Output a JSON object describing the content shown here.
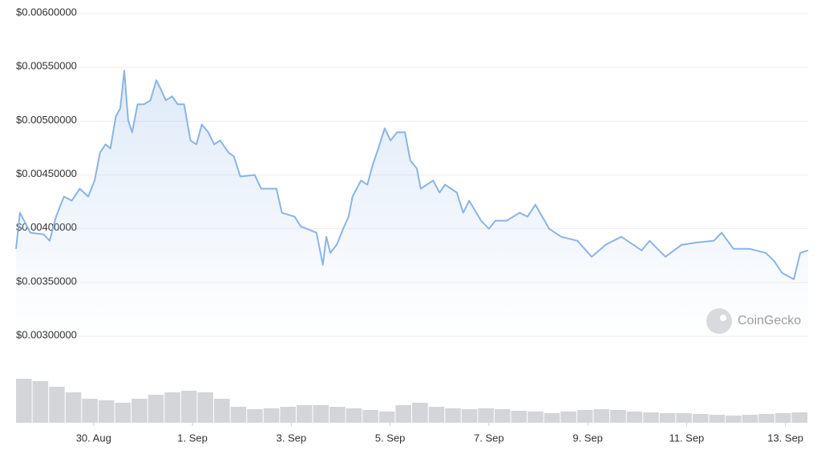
{
  "chart_data": {
    "type": "line",
    "watermark": "CoinGecko",
    "x": [
      -1.57,
      -1.49,
      -1.28,
      -1.01,
      -0.89,
      -0.76,
      -0.6,
      -0.44,
      -0.28,
      -0.11,
      0.02,
      0.13,
      0.24,
      0.34,
      0.45,
      0.54,
      0.62,
      0.7,
      0.78,
      0.89,
      1.02,
      1.15,
      1.27,
      1.35,
      1.46,
      1.59,
      1.7,
      1.83,
      1.96,
      2.08,
      2.19,
      2.32,
      2.44,
      2.56,
      2.73,
      2.84,
      2.97,
      3.26,
      3.39,
      3.7,
      3.81,
      4.07,
      4.19,
      4.51,
      4.64,
      4.71,
      4.79,
      4.92,
      5.05,
      5.16,
      5.24,
      5.41,
      5.54,
      5.65,
      5.76,
      5.89,
      6.01,
      6.14,
      6.3,
      6.41,
      6.54,
      6.62,
      6.87,
      7.0,
      7.11,
      7.35,
      7.48,
      7.6,
      7.84,
      8.0,
      8.13,
      8.36,
      8.62,
      8.78,
      8.94,
      9.22,
      9.46,
      9.79,
      10.08,
      10.36,
      10.68,
      11.09,
      11.25,
      11.57,
      11.9,
      12.22,
      12.55,
      12.71,
      12.95,
      13.28,
      13.6,
      13.77,
      13.93,
      14.17,
      14.3,
      14.46
    ],
    "series": [
      {
        "color": "#8ab4e8",
        "values": [
          0.003813,
          0.004149,
          0.003963,
          0.003948,
          0.003888,
          0.004112,
          0.004299,
          0.004261,
          0.004373,
          0.004299,
          0.004448,
          0.004709,
          0.004784,
          0.004746,
          0.005045,
          0.005119,
          0.00547,
          0.005007,
          0.004896,
          0.005157,
          0.005157,
          0.005194,
          0.005381,
          0.005306,
          0.005194,
          0.005231,
          0.005157,
          0.005157,
          0.004821,
          0.004784,
          0.00497,
          0.004896,
          0.004784,
          0.004821,
          0.004709,
          0.004672,
          0.004485,
          0.0045,
          0.004373,
          0.004373,
          0.004149,
          0.004112,
          0.004022,
          0.003963,
          0.003664,
          0.003925,
          0.003776,
          0.003851,
          0.004,
          0.004112,
          0.004299,
          0.004448,
          0.00441,
          0.004597,
          0.004746,
          0.004933,
          0.004821,
          0.004896,
          0.004896,
          0.004634,
          0.00456,
          0.004373,
          0.004448,
          0.004336,
          0.00441,
          0.004336,
          0.004149,
          0.004261,
          0.004075,
          0.004,
          0.004075,
          0.004075,
          0.004149,
          0.004112,
          0.004224,
          0.004,
          0.003925,
          0.003888,
          0.003739,
          0.003851,
          0.003925,
          0.003799,
          0.003888,
          0.003739,
          0.003851,
          0.003873,
          0.003888,
          0.003963,
          0.003813,
          0.003813,
          0.003776,
          0.003701,
          0.00359,
          0.00353,
          0.003776,
          0.003799
        ]
      }
    ],
    "volume": {
      "color": "#d3d5d9",
      "ylim": [
        0,
        60
      ],
      "values": [
        55,
        52,
        45,
        38,
        30,
        28,
        25,
        30,
        35,
        38,
        40,
        38,
        30,
        20,
        17,
        18,
        20,
        22,
        22,
        20,
        18,
        16,
        14,
        22,
        25,
        20,
        18,
        17,
        18,
        17,
        15,
        14,
        12,
        14,
        16,
        17,
        16,
        14,
        13,
        12,
        12,
        11,
        10,
        9,
        10,
        11,
        12,
        13
      ]
    },
    "xlim": [
      -1.57,
      14.46
    ],
    "xticks": [
      {
        "value": 0,
        "label": "30. Aug"
      },
      {
        "value": 2,
        "label": "1. Sep"
      },
      {
        "value": 4,
        "label": "3. Sep"
      },
      {
        "value": 6,
        "label": "5. Sep"
      },
      {
        "value": 8,
        "label": "7. Sep"
      },
      {
        "value": 10,
        "label": "9. Sep"
      },
      {
        "value": 12,
        "label": "11. Sep"
      },
      {
        "value": 14,
        "label": "13. Sep"
      }
    ],
    "ylim": [
      0.003,
      0.006
    ],
    "yticks": [
      {
        "value": 0.003,
        "label": "$0.00300000"
      },
      {
        "value": 0.0035,
        "label": "$0.00350000"
      },
      {
        "value": 0.004,
        "label": "$0.00400000"
      },
      {
        "value": 0.0045,
        "label": "$0.00450000"
      },
      {
        "value": 0.005,
        "label": "$0.00500000"
      },
      {
        "value": 0.0055,
        "label": "$0.00550000"
      },
      {
        "value": 0.006,
        "label": "$0.00600000"
      }
    ],
    "grid": true
  }
}
